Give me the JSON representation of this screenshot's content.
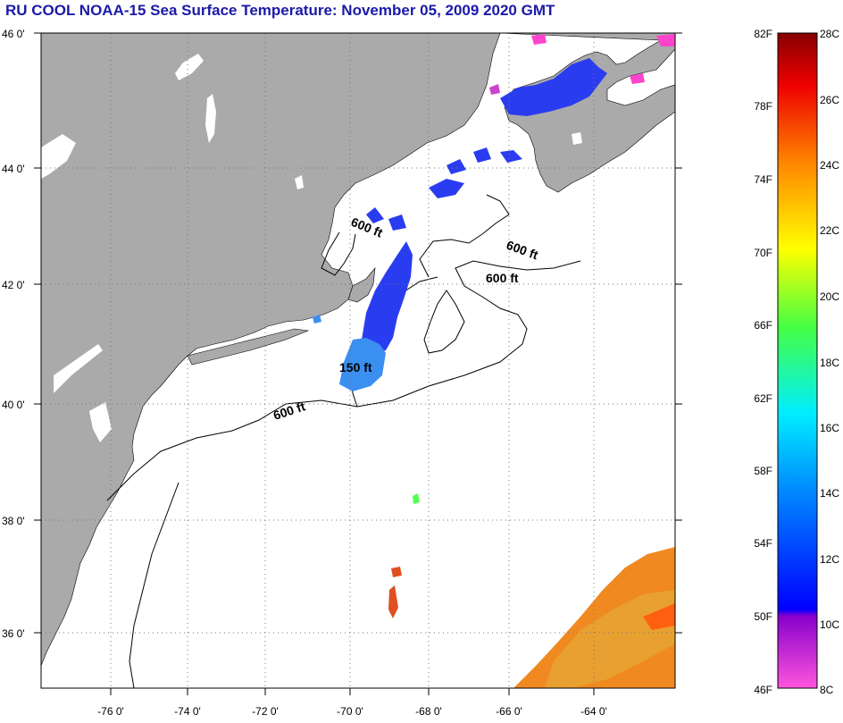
{
  "title": "RU COOL  NOAA-15  Sea Surface Temperature:  November 05, 2009 2020 GMT",
  "map": {
    "lat_labels": [
      "46 0'",
      "44 0'",
      "42 0'",
      "40 0'",
      "38 0'",
      "36 0'"
    ],
    "lon_labels": [
      "-76 0'",
      "-74 0'",
      "-72 0'",
      "-70 0'",
      "-68 0'",
      "-66 0'",
      "-64 0'"
    ],
    "contour_labels": [
      "600 ft",
      "600 ft",
      "600 ft",
      "600 ft",
      "150 ft"
    ],
    "colors": {
      "land": "#aaaaaa",
      "ocean": "#ffffff",
      "cold_water": "#2a3cf0",
      "cool_water": "#3b8ff0",
      "warm_water": "#f08a20"
    }
  },
  "colorbar": {
    "fahrenheit": [
      "82F",
      "78F",
      "74F",
      "70F",
      "66F",
      "62F",
      "58F",
      "54F",
      "50F",
      "46F"
    ],
    "celsius": [
      "28C",
      "26C",
      "24C",
      "22C",
      "20C",
      "18C",
      "16C",
      "14C",
      "12C",
      "10C",
      "8C"
    ]
  }
}
